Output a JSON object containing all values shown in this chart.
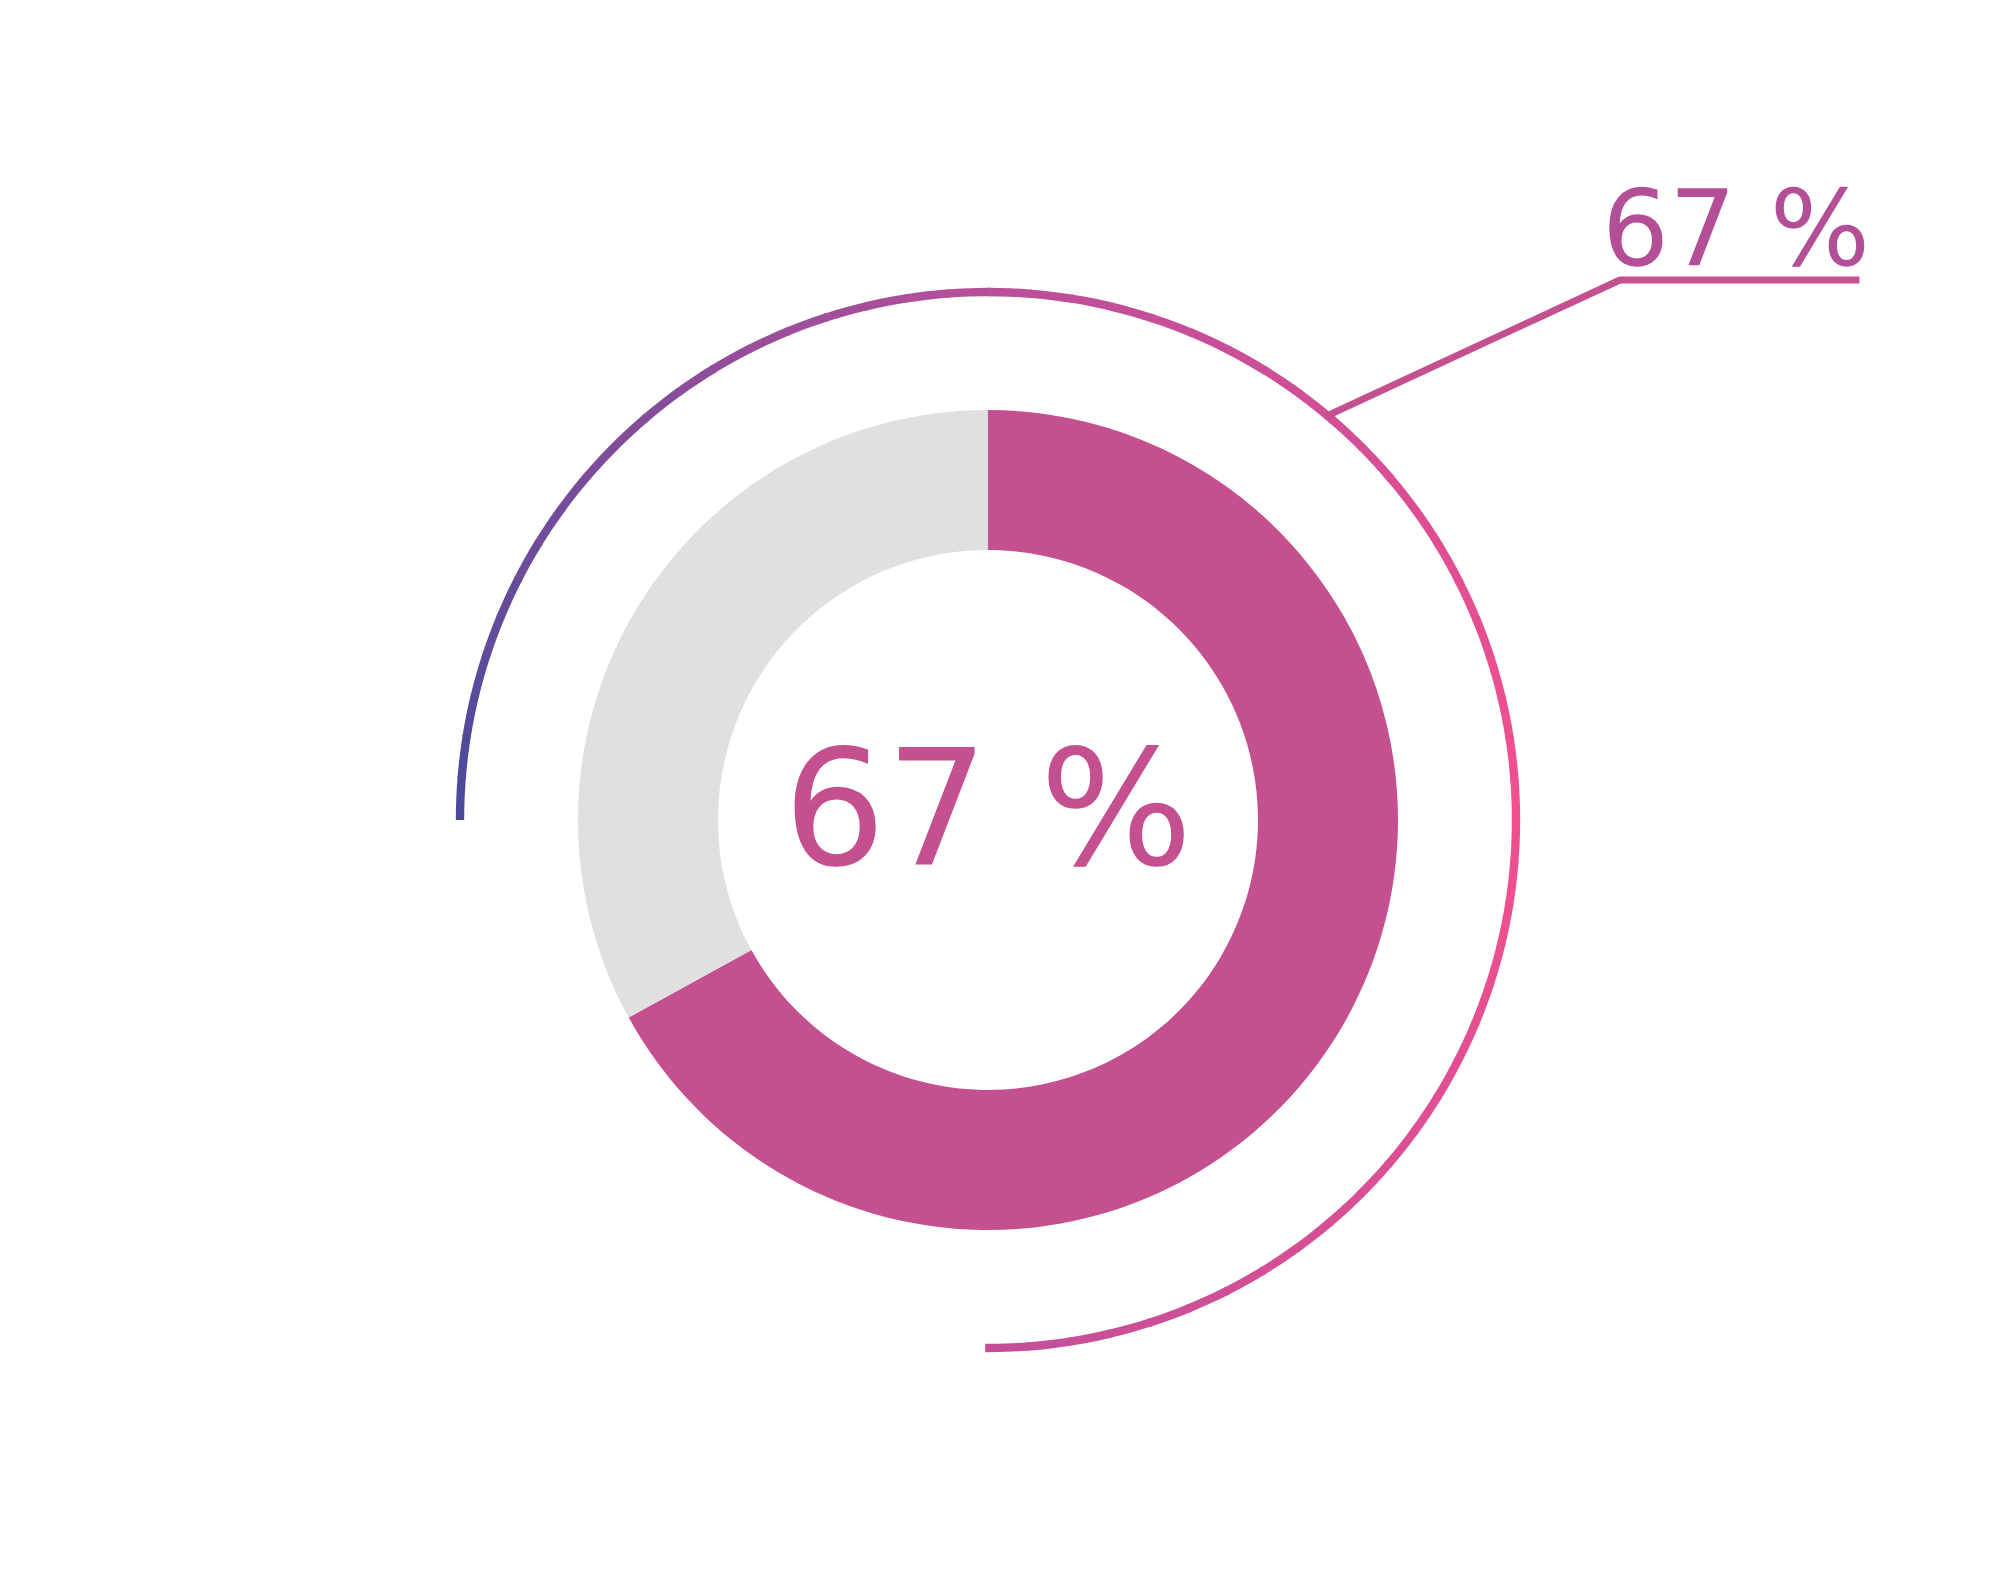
{
  "chart_data": {
    "type": "donut",
    "categories": [
      null,
      null
    ],
    "values": [
      67,
      33
    ],
    "colors": [
      "#c4508f",
      "#e0e0e0"
    ],
    "value_labels": [
      "67 %",
      null
    ],
    "annotations": [
      "67 %"
    ]
  }
}
